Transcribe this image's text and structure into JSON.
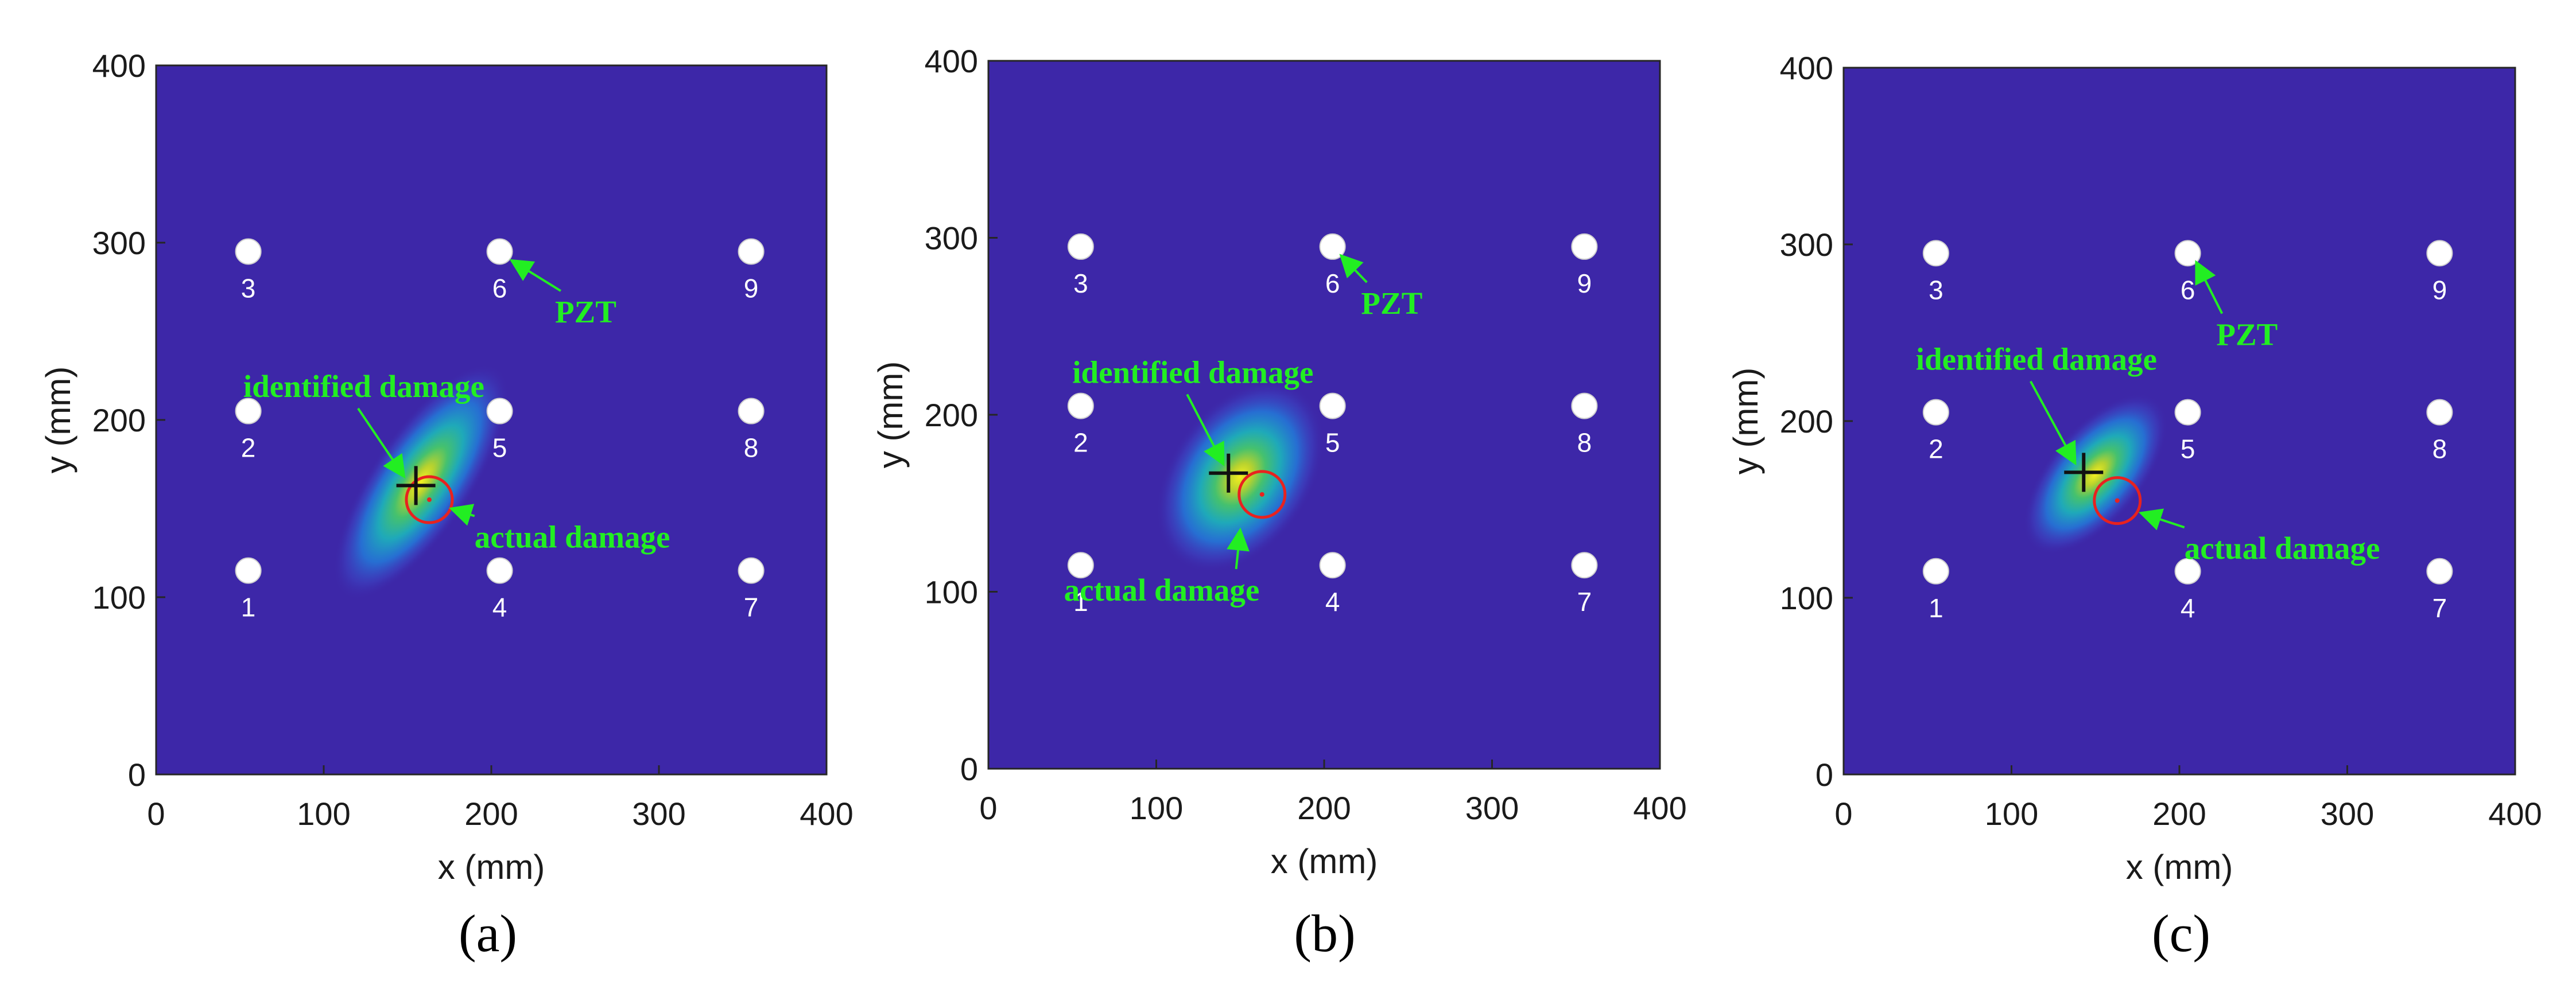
{
  "chart_data": [
    {
      "type": "heatmap",
      "panel_label": "(a)",
      "xlabel": "x (mm)",
      "ylabel": "y (mm)",
      "xlim": [
        0,
        400
      ],
      "ylim": [
        0,
        400
      ],
      "xticks": [
        0,
        100,
        200,
        300,
        400
      ],
      "yticks": [
        0,
        100,
        200,
        300,
        400
      ],
      "background_color": "#3d27a8",
      "sensors": [
        {
          "id": "1",
          "x": 55,
          "y": 115
        },
        {
          "id": "2",
          "x": 55,
          "y": 205
        },
        {
          "id": "3",
          "x": 55,
          "y": 295
        },
        {
          "id": "4",
          "x": 205,
          "y": 115
        },
        {
          "id": "5",
          "x": 205,
          "y": 205
        },
        {
          "id": "6",
          "x": 205,
          "y": 295
        },
        {
          "id": "7",
          "x": 355,
          "y": 115
        },
        {
          "id": "8",
          "x": 355,
          "y": 205
        },
        {
          "id": "9",
          "x": 355,
          "y": 295
        }
      ],
      "identified_damage": {
        "x": 155,
        "y": 163
      },
      "actual_damage": {
        "x": 163,
        "y": 155
      },
      "hotspot": {
        "cx": 158,
        "cy": 165,
        "rx": 30,
        "ry": 78,
        "angle_deg": 34
      },
      "annotations": [
        {
          "text": "PZT",
          "x": 238,
          "y": 255,
          "arrow_to": {
            "x": 212,
            "y": 290
          }
        },
        {
          "text": "identified damage",
          "x": 52,
          "y": 213,
          "arrow_to": {
            "x": 148,
            "y": 168
          }
        },
        {
          "text": "actual damage",
          "x": 190,
          "y": 128,
          "arrow_to": {
            "x": 176,
            "y": 150
          }
        }
      ]
    },
    {
      "type": "heatmap",
      "panel_label": "(b)",
      "xlabel": "x (mm)",
      "ylabel": "y (mm)",
      "xlim": [
        0,
        400
      ],
      "ylim": [
        0,
        400
      ],
      "xticks": [
        0,
        100,
        200,
        300,
        400
      ],
      "yticks": [
        0,
        100,
        200,
        300,
        400
      ],
      "background_color": "#3d27a8",
      "sensors": [
        {
          "id": "1",
          "x": 55,
          "y": 115
        },
        {
          "id": "2",
          "x": 55,
          "y": 205
        },
        {
          "id": "3",
          "x": 55,
          "y": 295
        },
        {
          "id": "4",
          "x": 205,
          "y": 115
        },
        {
          "id": "5",
          "x": 205,
          "y": 205
        },
        {
          "id": "6",
          "x": 205,
          "y": 295
        },
        {
          "id": "7",
          "x": 355,
          "y": 115
        },
        {
          "id": "8",
          "x": 355,
          "y": 205
        },
        {
          "id": "9",
          "x": 355,
          "y": 295
        }
      ],
      "identified_damage": {
        "x": 143,
        "y": 167
      },
      "actual_damage": {
        "x": 163,
        "y": 155
      },
      "hotspot": {
        "cx": 150,
        "cy": 165,
        "rx": 42,
        "ry": 60,
        "angle_deg": 35
      },
      "annotations": [
        {
          "text": "PZT",
          "x": 222,
          "y": 257,
          "arrow_to": {
            "x": 210,
            "y": 290
          }
        },
        {
          "text": "identified damage",
          "x": 50,
          "y": 218,
          "arrow_to": {
            "x": 140,
            "y": 172
          }
        },
        {
          "text": "actual damage",
          "x": 45,
          "y": 95,
          "arrow_to": {
            "x": 150,
            "y": 135
          }
        }
      ]
    },
    {
      "type": "heatmap",
      "panel_label": "(c)",
      "xlabel": "x (mm)",
      "ylabel": "y (mm)",
      "xlim": [
        0,
        400
      ],
      "ylim": [
        0,
        400
      ],
      "xticks": [
        0,
        100,
        200,
        300,
        400
      ],
      "yticks": [
        0,
        100,
        200,
        300,
        400
      ],
      "background_color": "#3d27a8",
      "sensors": [
        {
          "id": "1",
          "x": 55,
          "y": 115
        },
        {
          "id": "2",
          "x": 55,
          "y": 205
        },
        {
          "id": "3",
          "x": 55,
          "y": 295
        },
        {
          "id": "4",
          "x": 205,
          "y": 115
        },
        {
          "id": "5",
          "x": 205,
          "y": 205
        },
        {
          "id": "6",
          "x": 205,
          "y": 295
        },
        {
          "id": "7",
          "x": 355,
          "y": 115
        },
        {
          "id": "8",
          "x": 355,
          "y": 205
        },
        {
          "id": "9",
          "x": 355,
          "y": 295
        }
      ],
      "identified_damage": {
        "x": 143,
        "y": 171
      },
      "actual_damage": {
        "x": 163,
        "y": 155
      },
      "hotspot": {
        "cx": 150,
        "cy": 170,
        "rx": 28,
        "ry": 55,
        "angle_deg": 40
      },
      "annotations": [
        {
          "text": "PZT",
          "x": 222,
          "y": 243,
          "arrow_to": {
            "x": 210,
            "y": 290
          }
        },
        {
          "text": "identified damage",
          "x": 43,
          "y": 229,
          "arrow_to": {
            "x": 138,
            "y": 176
          }
        },
        {
          "text": "actual damage",
          "x": 203,
          "y": 122,
          "arrow_to": {
            "x": 177,
            "y": 148
          }
        }
      ]
    }
  ]
}
